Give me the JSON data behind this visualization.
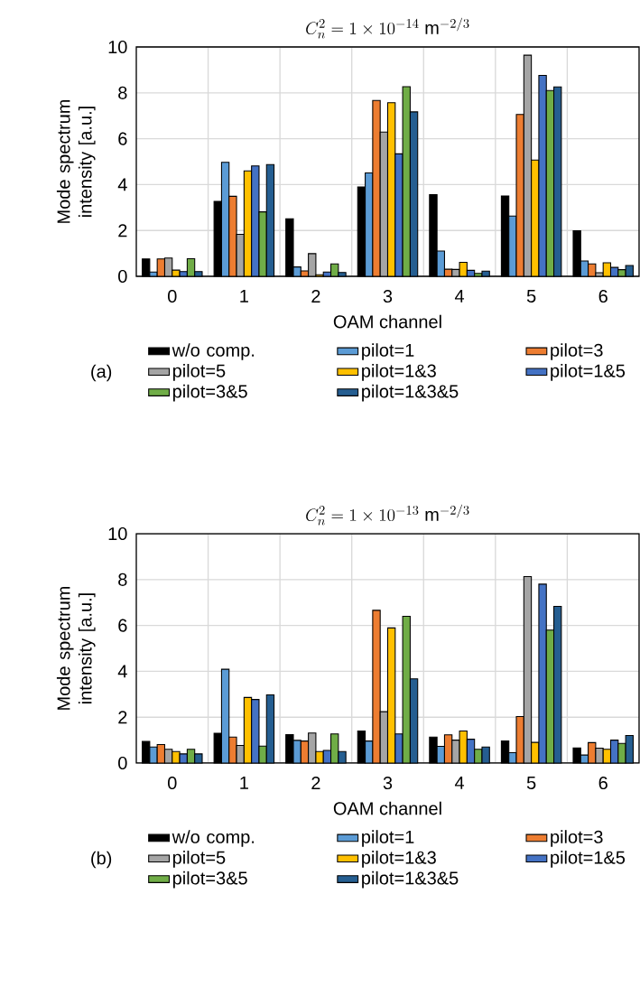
{
  "chart_data": [
    {
      "type": "bar",
      "title": "C_n^2 = 1\\times 10^{-14}\\ \\mathrm{m}^{-2/3}",
      "xlabel": "OAM channel",
      "ylabel": "Mode spectrum intensity [a.u.]",
      "annotations": [
        "(a)"
      ],
      "categories": [
        "0",
        "1",
        "2",
        "3",
        "4",
        "5",
        "6"
      ],
      "ylim": [
        0,
        10
      ],
      "yticks": [
        0,
        2,
        4,
        6,
        8,
        10
      ],
      "grid": true,
      "legend": "bottom",
      "series": [
        {
          "name": "w/o comp.",
          "color": "#000000",
          "values": [
            0.76,
            3.27,
            2.51,
            3.9,
            3.56,
            3.5,
            1.99
          ]
        },
        {
          "name": "pilot=1",
          "color": "#5b9bd5",
          "values": [
            0.19,
            4.97,
            0.41,
            4.51,
            1.1,
            2.63,
            0.67
          ]
        },
        {
          "name": "pilot=3",
          "color": "#ed7d31",
          "values": [
            0.76,
            3.49,
            0.24,
            7.67,
            0.31,
            7.06,
            0.54
          ]
        },
        {
          "name": "pilot=5",
          "color": "#a5a5a5",
          "values": [
            0.8,
            1.83,
            0.99,
            6.29,
            0.3,
            9.64,
            0.16
          ]
        },
        {
          "name": "pilot=1&3",
          "color": "#ffc000",
          "values": [
            0.27,
            4.6,
            0.07,
            7.57,
            0.61,
            5.07,
            0.59
          ]
        },
        {
          "name": "pilot=1&5",
          "color": "#4472c4",
          "values": [
            0.21,
            4.81,
            0.19,
            5.34,
            0.26,
            8.76,
            0.39
          ]
        },
        {
          "name": "pilot=3&5",
          "color": "#70ad47",
          "values": [
            0.77,
            2.81,
            0.54,
            8.27,
            0.13,
            8.1,
            0.29
          ]
        },
        {
          "name": "pilot=1&3&5",
          "color": "#255e91",
          "values": [
            0.21,
            4.87,
            0.17,
            7.17,
            0.23,
            8.26,
            0.47
          ]
        }
      ]
    },
    {
      "type": "bar",
      "title": "C_n^2 = 1\\times 10^{-13}\\ \\mathrm{m}^{-2/3}",
      "xlabel": "OAM channel",
      "ylabel": "Mode spectrum intensity [a.u.]",
      "annotations": [
        "(b)"
      ],
      "categories": [
        "0",
        "1",
        "2",
        "3",
        "4",
        "5",
        "6"
      ],
      "ylim": [
        0,
        10
      ],
      "yticks": [
        0,
        2,
        4,
        6,
        8,
        10
      ],
      "grid": true,
      "legend": "bottom",
      "series": [
        {
          "name": "w/o comp.",
          "color": "#000000",
          "values": [
            0.94,
            1.3,
            1.24,
            1.4,
            1.13,
            0.96,
            0.66
          ]
        },
        {
          "name": "pilot=1",
          "color": "#5b9bd5",
          "values": [
            0.7,
            4.09,
            0.99,
            0.96,
            0.73,
            0.45,
            0.35
          ]
        },
        {
          "name": "pilot=3",
          "color": "#ed7d31",
          "values": [
            0.81,
            1.13,
            0.96,
            6.66,
            1.23,
            2.03,
            0.89
          ]
        },
        {
          "name": "pilot=5",
          "color": "#a5a5a5",
          "values": [
            0.6,
            0.77,
            1.31,
            2.24,
            1.0,
            8.13,
            0.65
          ]
        },
        {
          "name": "pilot=1&3",
          "color": "#ffc000",
          "values": [
            0.5,
            2.86,
            0.5,
            5.89,
            1.4,
            0.9,
            0.6
          ]
        },
        {
          "name": "pilot=1&5",
          "color": "#4472c4",
          "values": [
            0.4,
            2.77,
            0.55,
            1.27,
            1.04,
            7.8,
            1.0
          ]
        },
        {
          "name": "pilot=3&5",
          "color": "#70ad47",
          "values": [
            0.6,
            0.74,
            1.27,
            6.4,
            0.6,
            5.8,
            0.86
          ]
        },
        {
          "name": "pilot=1&3&5",
          "color": "#255e91",
          "values": [
            0.4,
            2.97,
            0.5,
            3.67,
            0.7,
            6.83,
            1.2
          ]
        }
      ]
    }
  ]
}
